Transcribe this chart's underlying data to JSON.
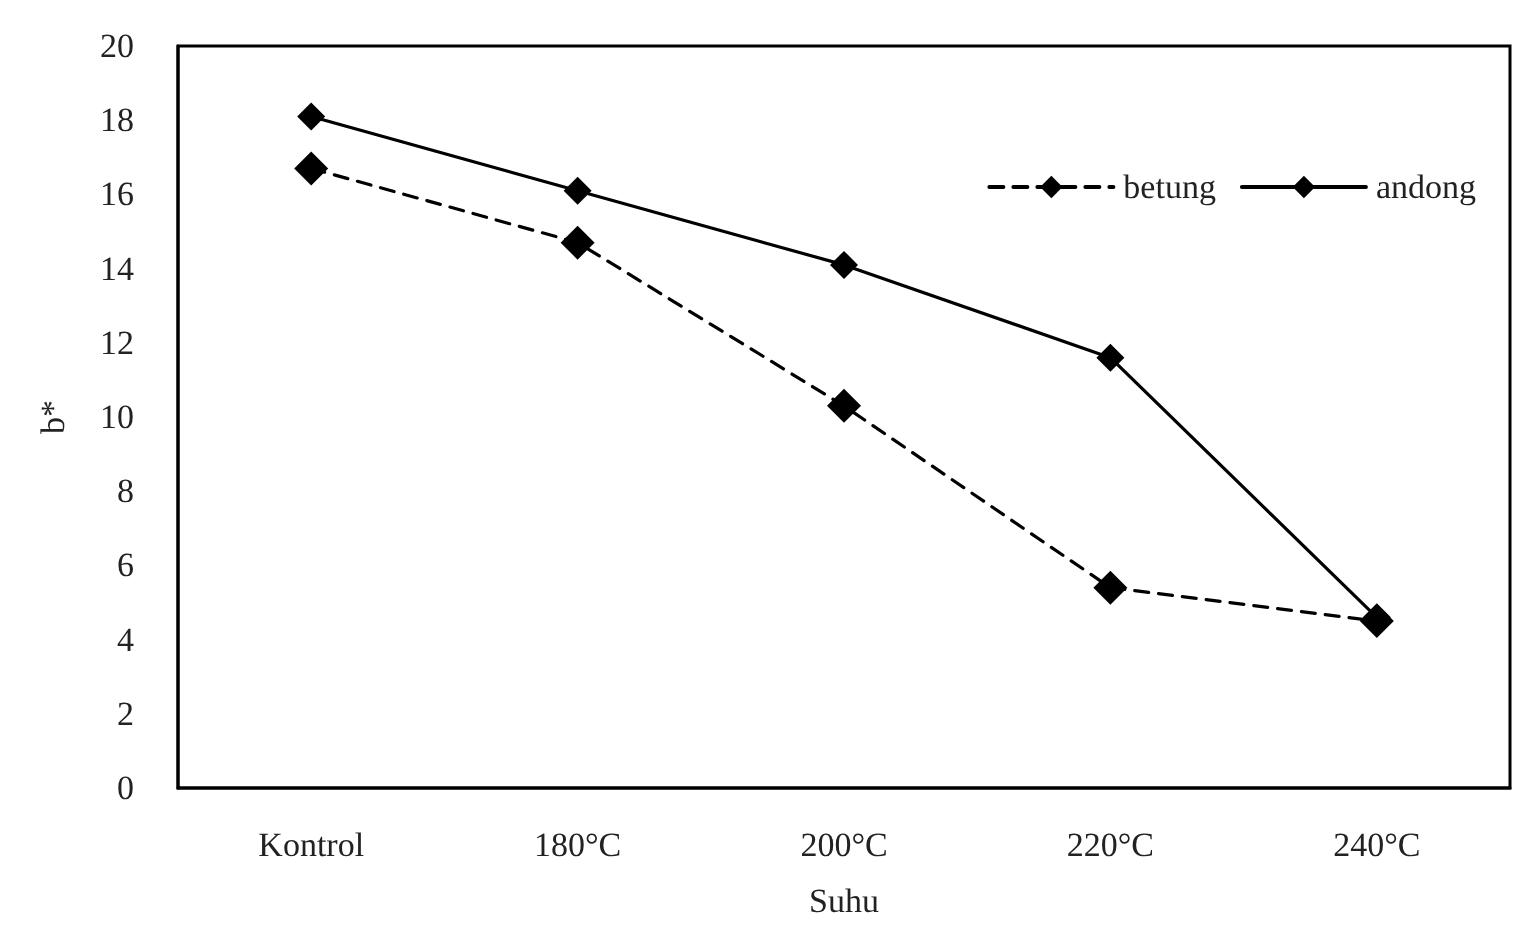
{
  "chart_data": {
    "type": "line",
    "xlabel": "Suhu",
    "ylabel": "b*",
    "categories": [
      "Kontrol",
      "180°C",
      "200°C",
      "220°C",
      "240°C"
    ],
    "series": [
      {
        "name": "betung",
        "color": "#000000",
        "line_style": "dashed",
        "values": [
          16.7,
          14.7,
          10.3,
          5.4,
          4.5
        ]
      },
      {
        "name": "andong",
        "color": "#000000",
        "line_style": "solid",
        "values": [
          18.1,
          16.1,
          14.1,
          11.6,
          4.6
        ]
      }
    ],
    "ylim": [
      0,
      20
    ],
    "yticks": [
      0,
      2,
      4,
      6,
      8,
      10,
      12,
      14,
      16,
      18,
      20
    ],
    "grid": false,
    "legend": "top right",
    "marker": "diamond"
  }
}
